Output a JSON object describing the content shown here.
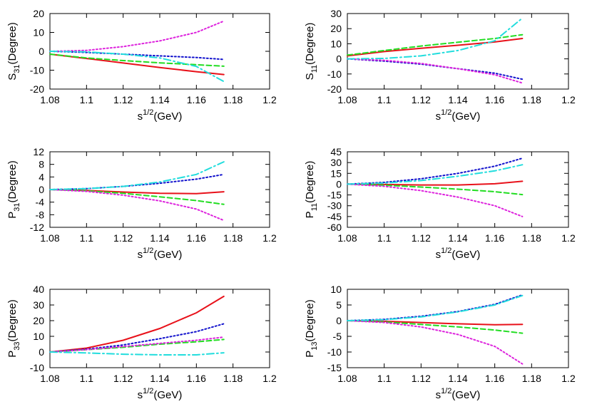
{
  "chart_data": [
    {
      "type": "line",
      "ylabel": {
        "main": "S",
        "sub": "31",
        "rest": "(Degree)"
      },
      "xlabel": {
        "main": "s",
        "sup": "1/2",
        "rest": "(GeV)"
      },
      "xlim": [
        1.08,
        1.2
      ],
      "ylim": [
        -20,
        20
      ],
      "xticks": [
        "1.08",
        "1.1",
        "1.12",
        "1.14",
        "1.16",
        "1.18",
        "1.2"
      ],
      "yticks": [
        "-20",
        "-10",
        "0",
        "10",
        "20"
      ],
      "series": [
        {
          "color": "#e8111a",
          "style": "solid",
          "x": [
            1.08,
            1.1,
            1.12,
            1.14,
            1.16,
            1.175
          ],
          "y": [
            -1.5,
            -3.8,
            -6.2,
            -8.6,
            -10.8,
            -12.3
          ]
        },
        {
          "color": "#22dd22",
          "style": "dashed",
          "x": [
            1.08,
            1.1,
            1.12,
            1.14,
            1.16,
            1.175
          ],
          "y": [
            -1.5,
            -3.5,
            -4.9,
            -6.1,
            -7.1,
            -7.9
          ]
        },
        {
          "color": "#1010cc",
          "style": "dotted",
          "x": [
            1.08,
            1.1,
            1.12,
            1.14,
            1.16,
            1.175
          ],
          "y": [
            0,
            -0.6,
            -1.5,
            -2.4,
            -3.3,
            -4.3
          ]
        },
        {
          "color": "#dd22dd",
          "style": "dotted",
          "x": [
            1.08,
            1.1,
            1.12,
            1.14,
            1.16,
            1.175
          ],
          "y": [
            0,
            0.5,
            2.5,
            5.5,
            10.0,
            16.0
          ]
        },
        {
          "color": "#22dddd",
          "style": "dashdot",
          "x": [
            1.08,
            1.1,
            1.12,
            1.14,
            1.16,
            1.175
          ],
          "y": [
            0,
            -0.3,
            -1.5,
            -3.5,
            -8.0,
            -16.0
          ]
        }
      ]
    },
    {
      "type": "line",
      "ylabel": {
        "main": "S",
        "sub": "11",
        "rest": "(Degree)"
      },
      "xlabel": {
        "main": "s",
        "sup": "1/2",
        "rest": "(GeV)"
      },
      "xlim": [
        1.08,
        1.2
      ],
      "ylim": [
        -20,
        30
      ],
      "xticks": [
        "1.08",
        "1.1",
        "1.12",
        "1.14",
        "1.16",
        "1.18",
        "1.2"
      ],
      "yticks": [
        "-20",
        "-10",
        "0",
        "10",
        "20",
        "30"
      ],
      "series": [
        {
          "color": "#e8111a",
          "style": "solid",
          "x": [
            1.08,
            1.1,
            1.12,
            1.14,
            1.16,
            1.175
          ],
          "y": [
            2.0,
            4.8,
            7.0,
            9.0,
            11.2,
            13.5
          ]
        },
        {
          "color": "#22dd22",
          "style": "dashed",
          "x": [
            1.08,
            1.1,
            1.12,
            1.14,
            1.16,
            1.175
          ],
          "y": [
            2.5,
            5.5,
            8.5,
            11.0,
            13.5,
            16.0
          ]
        },
        {
          "color": "#1010cc",
          "style": "dotted",
          "x": [
            1.08,
            1.1,
            1.12,
            1.14,
            1.16,
            1.175
          ],
          "y": [
            0,
            -1.5,
            -3.5,
            -6.5,
            -9.5,
            -13.5
          ]
        },
        {
          "color": "#dd22dd",
          "style": "dotted",
          "x": [
            1.08,
            1.1,
            1.12,
            1.14,
            1.16,
            1.175
          ],
          "y": [
            0,
            -1.0,
            -3.0,
            -6.5,
            -10.5,
            -16.0
          ]
        },
        {
          "color": "#22dddd",
          "style": "dashdot",
          "x": [
            1.08,
            1.1,
            1.12,
            1.14,
            1.16,
            1.175
          ],
          "y": [
            0,
            0.3,
            2.0,
            5.5,
            12.0,
            27.0
          ]
        }
      ]
    },
    {
      "type": "line",
      "ylabel": {
        "main": "P",
        "sub": "31",
        "rest": "(Degree)"
      },
      "xlabel": {
        "main": "s",
        "sup": "1/2",
        "rest": "(GeV)"
      },
      "xlim": [
        1.08,
        1.2
      ],
      "ylim": [
        -12,
        12
      ],
      "xticks": [
        "1.08",
        "1.1",
        "1.12",
        "1.14",
        "1.16",
        "1.18",
        "1.2"
      ],
      "yticks": [
        "-12",
        "-8",
        "-4",
        "0",
        "4",
        "8",
        "12"
      ],
      "series": [
        {
          "color": "#e8111a",
          "style": "solid",
          "x": [
            1.08,
            1.1,
            1.12,
            1.14,
            1.16,
            1.175
          ],
          "y": [
            0,
            -0.3,
            -0.8,
            -1.2,
            -1.3,
            -0.7
          ]
        },
        {
          "color": "#22dd22",
          "style": "dashed",
          "x": [
            1.08,
            1.1,
            1.12,
            1.14,
            1.16,
            1.175
          ],
          "y": [
            0,
            -0.4,
            -1.2,
            -2.3,
            -3.5,
            -4.7
          ]
        },
        {
          "color": "#1010cc",
          "style": "dotted",
          "x": [
            1.08,
            1.1,
            1.12,
            1.14,
            1.16,
            1.175
          ],
          "y": [
            0,
            0.3,
            1.0,
            2.0,
            3.3,
            4.8
          ]
        },
        {
          "color": "#dd22dd",
          "style": "dotted",
          "x": [
            1.08,
            1.1,
            1.12,
            1.14,
            1.16,
            1.175
          ],
          "y": [
            0,
            -0.6,
            -1.8,
            -3.6,
            -6.2,
            -9.8
          ]
        },
        {
          "color": "#22dddd",
          "style": "dashdot",
          "x": [
            1.08,
            1.1,
            1.12,
            1.14,
            1.16,
            1.175
          ],
          "y": [
            0,
            0.3,
            1.0,
            2.4,
            4.8,
            8.8
          ]
        }
      ]
    },
    {
      "type": "line",
      "ylabel": {
        "main": "P",
        "sub": "11",
        "rest": "(Degree)"
      },
      "xlabel": {
        "main": "s",
        "sup": "1/2",
        "rest": "(GeV)"
      },
      "xlim": [
        1.08,
        1.2
      ],
      "ylim": [
        -60,
        45
      ],
      "xticks": [
        "1.08",
        "1.1",
        "1.12",
        "1.14",
        "1.16",
        "1.18",
        "1.2"
      ],
      "yticks": [
        "-60",
        "-45",
        "-30",
        "-15",
        "0",
        "15",
        "30",
        "45"
      ],
      "series": [
        {
          "color": "#e8111a",
          "style": "solid",
          "x": [
            1.08,
            1.1,
            1.12,
            1.14,
            1.16,
            1.175
          ],
          "y": [
            0,
            -0.5,
            -1.2,
            -1.2,
            0.5,
            4.0
          ]
        },
        {
          "color": "#22dd22",
          "style": "dashed",
          "x": [
            1.08,
            1.1,
            1.12,
            1.14,
            1.16,
            1.175
          ],
          "y": [
            0,
            -1.5,
            -4.0,
            -7.0,
            -10.5,
            -14.5
          ]
        },
        {
          "color": "#1010cc",
          "style": "dotted",
          "x": [
            1.08,
            1.1,
            1.12,
            1.14,
            1.16,
            1.175
          ],
          "y": [
            0,
            2.5,
            7.5,
            15.0,
            25.0,
            36.0
          ]
        },
        {
          "color": "#dd22dd",
          "style": "dotted",
          "x": [
            1.08,
            1.1,
            1.12,
            1.14,
            1.16,
            1.175
          ],
          "y": [
            0,
            -3.0,
            -9.0,
            -18.0,
            -30.0,
            -45.0
          ]
        },
        {
          "color": "#22dddd",
          "style": "dashdot",
          "x": [
            1.08,
            1.1,
            1.12,
            1.14,
            1.16,
            1.175
          ],
          "y": [
            0,
            1.5,
            5.0,
            11.0,
            18.5,
            27.0
          ]
        }
      ]
    },
    {
      "type": "line",
      "ylabel": {
        "main": "P",
        "sub": "33",
        "rest": "(Degree)"
      },
      "xlabel": {
        "main": "s",
        "sup": "1/2",
        "rest": "(GeV)"
      },
      "xlim": [
        1.08,
        1.2
      ],
      "ylim": [
        -10,
        40
      ],
      "xticks": [
        "1.08",
        "1.1",
        "1.12",
        "1.14",
        "1.16",
        "1.18",
        "1.2"
      ],
      "yticks": [
        "-10",
        "0",
        "10",
        "20",
        "30",
        "40"
      ],
      "series": [
        {
          "color": "#e8111a",
          "style": "solid",
          "x": [
            1.08,
            1.1,
            1.12,
            1.14,
            1.16,
            1.175
          ],
          "y": [
            0,
            2.5,
            7.5,
            15.0,
            25.0,
            35.5
          ]
        },
        {
          "color": "#22dd22",
          "style": "dashed",
          "x": [
            1.08,
            1.1,
            1.12,
            1.14,
            1.16,
            1.175
          ],
          "y": [
            0,
            1.5,
            3.0,
            5.0,
            6.5,
            8.0
          ]
        },
        {
          "color": "#1010cc",
          "style": "dotted",
          "x": [
            1.08,
            1.1,
            1.12,
            1.14,
            1.16,
            1.175
          ],
          "y": [
            0,
            1.8,
            4.5,
            8.5,
            13.0,
            18.0
          ]
        },
        {
          "color": "#dd22dd",
          "style": "dotted",
          "x": [
            1.08,
            1.1,
            1.12,
            1.14,
            1.16,
            1.175
          ],
          "y": [
            0,
            1.5,
            3.5,
            5.5,
            7.5,
            9.5
          ]
        },
        {
          "color": "#22dddd",
          "style": "dashdot",
          "x": [
            1.08,
            1.1,
            1.12,
            1.14,
            1.16,
            1.175
          ],
          "y": [
            0,
            -0.6,
            -1.4,
            -1.8,
            -1.8,
            -0.5
          ]
        }
      ]
    },
    {
      "type": "line",
      "ylabel": {
        "main": "P",
        "sub": "13",
        "rest": "(Degree)"
      },
      "xlabel": {
        "main": "s",
        "sup": "1/2",
        "rest": "(GeV)"
      },
      "xlim": [
        1.08,
        1.2
      ],
      "ylim": [
        -15,
        10
      ],
      "xticks": [
        "1.08",
        "1.1",
        "1.12",
        "1.14",
        "1.16",
        "1.18",
        "1.2"
      ],
      "yticks": [
        "-15",
        "-10",
        "-5",
        "0",
        "5",
        "10"
      ],
      "series": [
        {
          "color": "#e8111a",
          "style": "solid",
          "x": [
            1.08,
            1.1,
            1.12,
            1.14,
            1.16,
            1.175
          ],
          "y": [
            0,
            -0.2,
            -0.6,
            -1.0,
            -1.3,
            -1.2
          ]
        },
        {
          "color": "#22dd22",
          "style": "dashed",
          "x": [
            1.08,
            1.1,
            1.12,
            1.14,
            1.16,
            1.175
          ],
          "y": [
            0,
            -0.4,
            -1.2,
            -2.0,
            -3.0,
            -4.0
          ]
        },
        {
          "color": "#1010cc",
          "style": "dotted",
          "x": [
            1.08,
            1.1,
            1.12,
            1.14,
            1.16,
            1.175
          ],
          "y": [
            0,
            0.4,
            1.4,
            2.9,
            5.2,
            8.2
          ]
        },
        {
          "color": "#dd22dd",
          "style": "dotted",
          "x": [
            1.08,
            1.1,
            1.12,
            1.14,
            1.16,
            1.175
          ],
          "y": [
            0,
            -0.6,
            -2.0,
            -4.4,
            -8.2,
            -13.8
          ]
        },
        {
          "color": "#22dddd",
          "style": "dashdot",
          "x": [
            1.08,
            1.1,
            1.12,
            1.14,
            1.16,
            1.175
          ],
          "y": [
            0,
            0.3,
            1.2,
            2.8,
            5.0,
            8.0
          ]
        }
      ]
    }
  ]
}
